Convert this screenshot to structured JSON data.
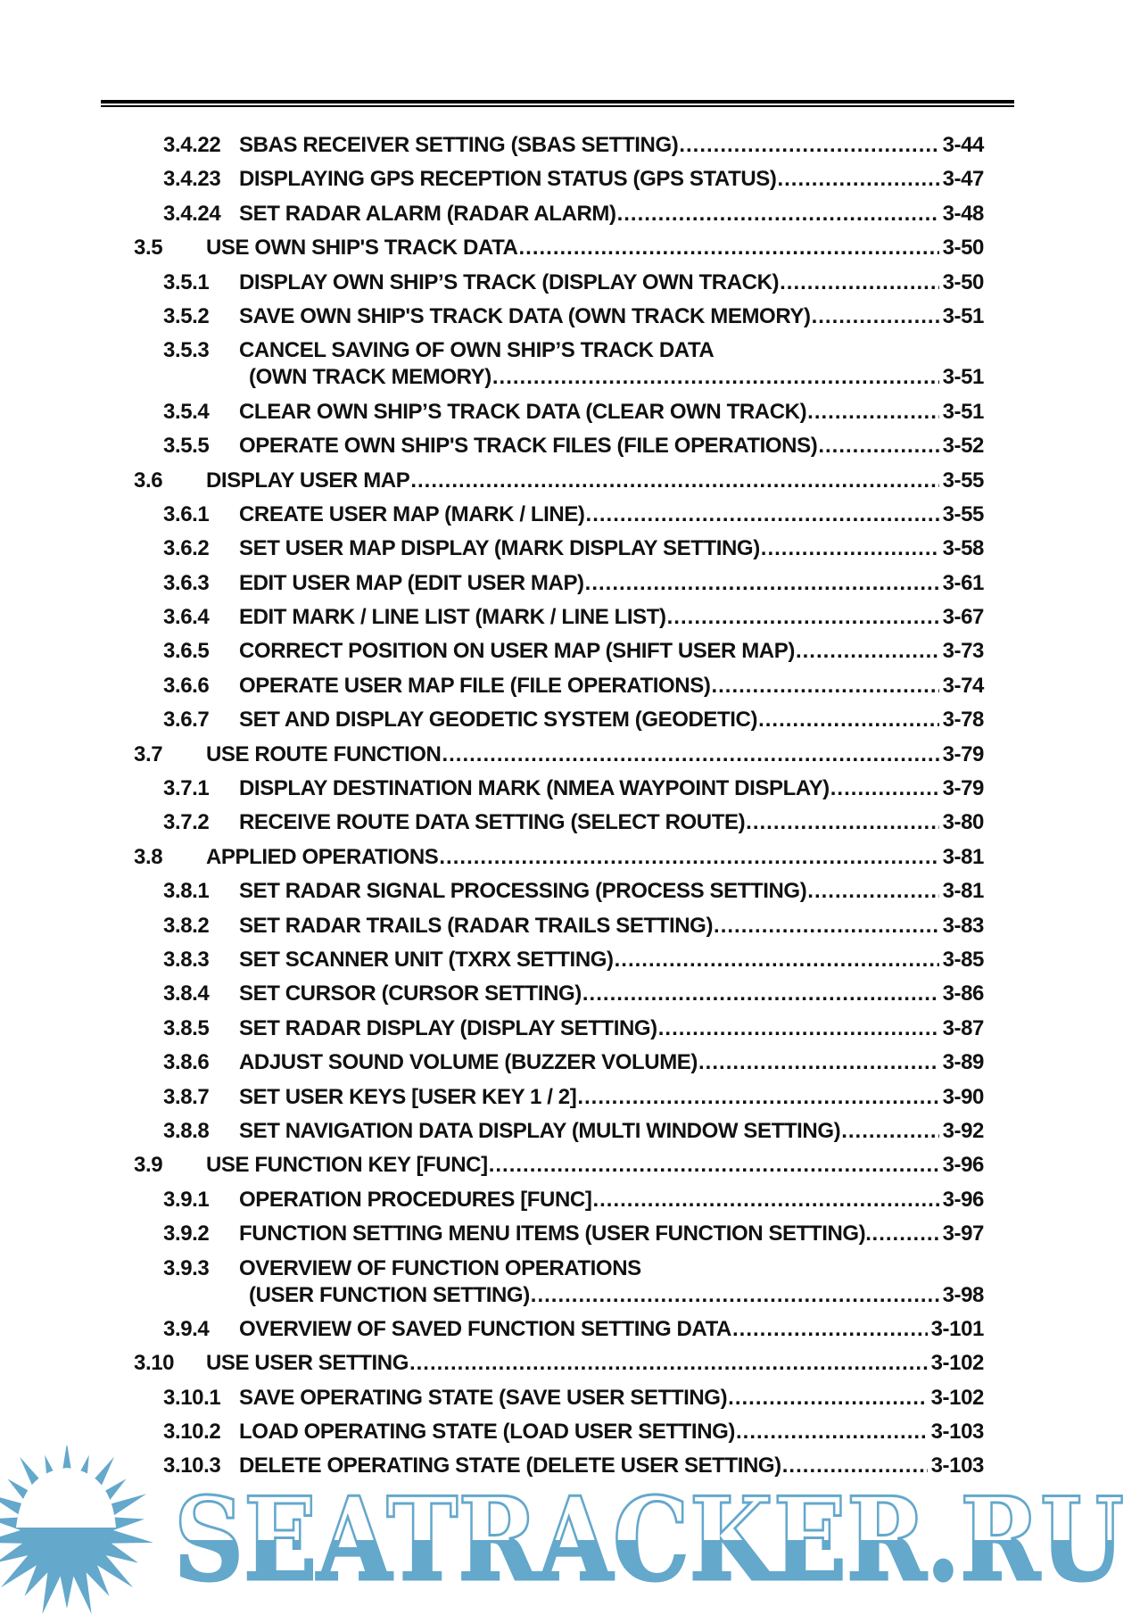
{
  "toc": [
    {
      "level": 2,
      "num": "3.4.22",
      "title": "SBAS RECEIVER SETTING (SBAS SETTING)",
      "page": "3-44"
    },
    {
      "level": 2,
      "num": "3.4.23",
      "title": "DISPLAYING GPS RECEPTION STATUS (GPS STATUS)",
      "page": "3-47"
    },
    {
      "level": 2,
      "num": "3.4.24",
      "title": "SET RADAR ALARM (RADAR ALARM)",
      "page": "3-48"
    },
    {
      "level": 1,
      "num": "3.5",
      "title": "USE OWN SHIP'S TRACK DATA",
      "page": "3-50"
    },
    {
      "level": 2,
      "num": "3.5.1",
      "title": "DISPLAY OWN SHIP’S TRACK (DISPLAY OWN TRACK)",
      "page": "3-50"
    },
    {
      "level": 2,
      "num": "3.5.2",
      "title": "SAVE OWN SHIP'S TRACK DATA (OWN TRACK MEMORY)",
      "page": "3-51"
    },
    {
      "level": 2,
      "num": "3.5.3",
      "title": "CANCEL SAVING OF OWN SHIP’S TRACK DATA",
      "title2": "(OWN TRACK MEMORY)",
      "page": "3-51"
    },
    {
      "level": 2,
      "num": "3.5.4",
      "title": "CLEAR OWN SHIP’S TRACK DATA (CLEAR OWN TRACK)",
      "page": "3-51"
    },
    {
      "level": 2,
      "num": "3.5.5",
      "title": "OPERATE OWN SHIP'S TRACK FILES (FILE OPERATIONS)",
      "page": "3-52"
    },
    {
      "level": 1,
      "num": "3.6",
      "title": "DISPLAY USER MAP",
      "page": "3-55"
    },
    {
      "level": 2,
      "num": "3.6.1",
      "title": "CREATE USER MAP (MARK / LINE)",
      "page": "3-55"
    },
    {
      "level": 2,
      "num": "3.6.2",
      "title": "SET USER MAP DISPLAY (MARK DISPLAY SETTING)",
      "page": "3-58"
    },
    {
      "level": 2,
      "num": "3.6.3",
      "title": "EDIT USER MAP (EDIT USER MAP)",
      "page": "3-61"
    },
    {
      "level": 2,
      "num": "3.6.4",
      "title": "EDIT MARK / LINE LIST (MARK / LINE LIST)",
      "page": "3-67"
    },
    {
      "level": 2,
      "num": "3.6.5",
      "title": "CORRECT POSITION ON USER MAP (SHIFT USER MAP)",
      "page": "3-73"
    },
    {
      "level": 2,
      "num": "3.6.6",
      "title": "OPERATE USER MAP FILE (FILE OPERATIONS)",
      "page": "3-74"
    },
    {
      "level": 2,
      "num": "3.6.7",
      "title": "SET AND DISPLAY GEODETIC SYSTEM (GEODETIC)",
      "page": "3-78"
    },
    {
      "level": 1,
      "num": "3.7",
      "title": "USE ROUTE FUNCTION",
      "page": "3-79"
    },
    {
      "level": 2,
      "num": "3.7.1",
      "title": "DISPLAY DESTINATION MARK (NMEA WAYPOINT DISPLAY)",
      "page": "3-79"
    },
    {
      "level": 2,
      "num": "3.7.2",
      "title": "RECEIVE ROUTE DATA SETTING (SELECT ROUTE)",
      "page": "3-80"
    },
    {
      "level": 1,
      "num": "3.8",
      "title": "APPLIED OPERATIONS",
      "page": "3-81"
    },
    {
      "level": 2,
      "num": "3.8.1",
      "title": "SET RADAR SIGNAL PROCESSING (PROCESS SETTING)",
      "page": "3-81"
    },
    {
      "level": 2,
      "num": "3.8.2",
      "title": "SET RADAR TRAILS (RADAR TRAILS SETTING)",
      "page": "3-83"
    },
    {
      "level": 2,
      "num": "3.8.3",
      "title": "SET SCANNER UNIT (TXRX SETTING)",
      "page": "3-85"
    },
    {
      "level": 2,
      "num": "3.8.4",
      "title": "SET CURSOR (CURSOR SETTING)",
      "page": "3-86"
    },
    {
      "level": 2,
      "num": "3.8.5",
      "title": "SET RADAR DISPLAY (DISPLAY SETTING)",
      "page": "3-87"
    },
    {
      "level": 2,
      "num": "3.8.6",
      "title": "ADJUST SOUND VOLUME (BUZZER VOLUME)",
      "page": "3-89"
    },
    {
      "level": 2,
      "num": "3.8.7",
      "title": "SET USER KEYS [USER KEY 1 / 2]",
      "page": "3-90"
    },
    {
      "level": 2,
      "num": "3.8.8",
      "title": "SET NAVIGATION DATA DISPLAY (MULTI WINDOW SETTING)",
      "page": "3-92"
    },
    {
      "level": 1,
      "num": "3.9",
      "title": "USE FUNCTION KEY [FUNC]",
      "page": "3-96"
    },
    {
      "level": 2,
      "num": "3.9.1",
      "title": "OPERATION PROCEDURES [FUNC]",
      "page": "3-96"
    },
    {
      "level": 2,
      "num": "3.9.2",
      "title": "FUNCTION SETTING MENU ITEMS (USER FUNCTION SETTING).",
      "page": "3-97"
    },
    {
      "level": 2,
      "num": "3.9.3",
      "title": "OVERVIEW OF FUNCTION OPERATIONS",
      "title2": "(USER FUNCTION SETTING)",
      "page": "3-98"
    },
    {
      "level": 2,
      "num": "3.9.4",
      "title": "OVERVIEW OF SAVED FUNCTION SETTING DATA",
      "page": "3-101"
    },
    {
      "level": 1,
      "num": "3.10",
      "title": "USE USER SETTING",
      "page": "3-102"
    },
    {
      "level": 2,
      "num": "3.10.1",
      "title": "SAVE OPERATING STATE (SAVE USER SETTING)",
      "page": "3-102"
    },
    {
      "level": 2,
      "num": "3.10.2",
      "title": "LOAD OPERATING STATE (LOAD USER SETTING)",
      "page": "3-103"
    },
    {
      "level": 2,
      "num": "3.10.3",
      "title": "DELETE OPERATING STATE (DELETE USER SETTING)",
      "page": "3-103"
    }
  ],
  "watermark": {
    "text": "SEATRACKER.RU",
    "color": "#64a8cc",
    "icon": "sun-icon"
  }
}
